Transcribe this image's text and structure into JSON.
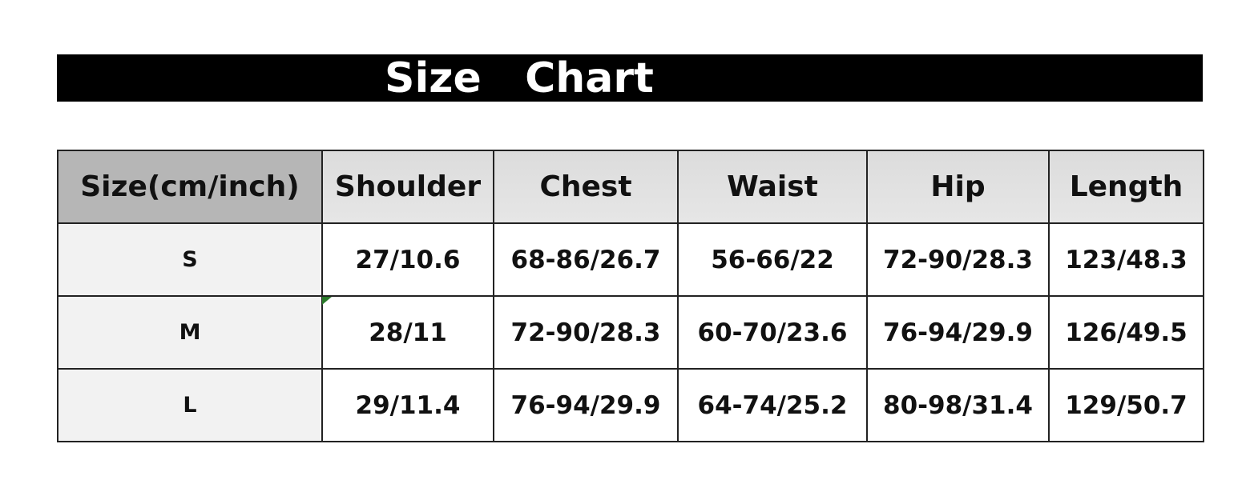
{
  "title": "Size   Chart",
  "chart_data": {
    "type": "table",
    "title": "Size   Chart",
    "columns": [
      "Size(cm/inch)",
      "Shoulder",
      "Chest",
      "Waist",
      "Hip",
      "Length"
    ],
    "rows": [
      [
        "S",
        "27/10.6",
        "68-86/26.7",
        "56-66/22",
        "72-90/28.3",
        "123/48.3"
      ],
      [
        "M",
        "28/11",
        "72-90/28.3",
        "60-70/23.6",
        "76-94/29.9",
        "126/49.5"
      ],
      [
        "L",
        "29/11.4",
        "76-94/29.9",
        "64-74/25.2",
        "80-98/31.4",
        "129/50.7"
      ]
    ]
  }
}
